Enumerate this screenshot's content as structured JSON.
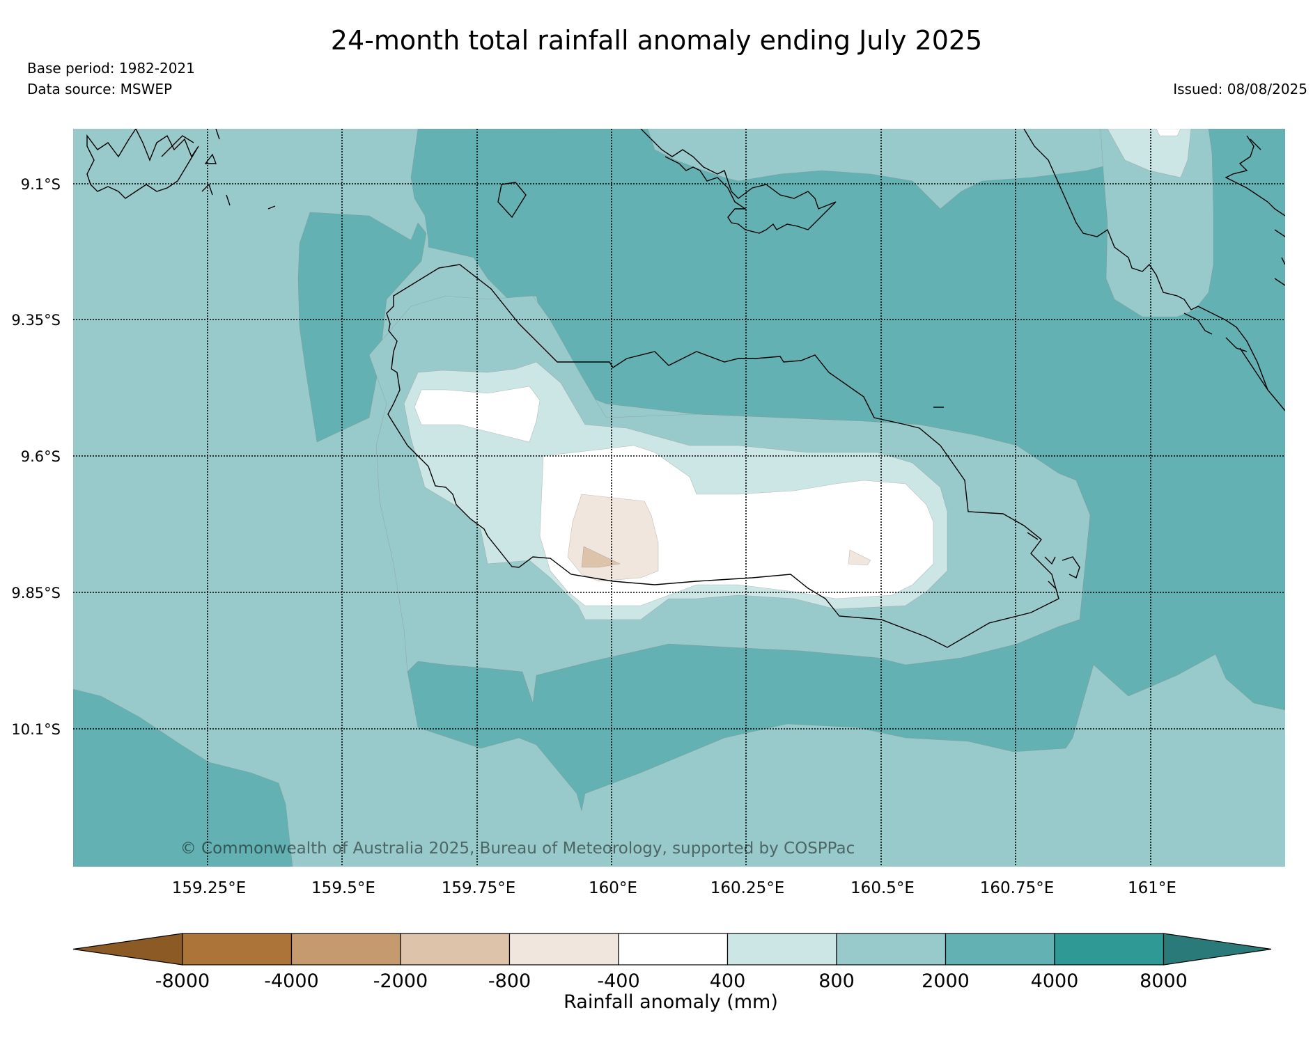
{
  "header": {
    "title": "24-month total rainfall anomaly ending July 2025",
    "base_period": "Base period: 1982-2021",
    "data_source": "Data source: MSWEP",
    "issued": "Issued: 08/08/2025"
  },
  "map": {
    "lat_labels": [
      "9.1°S",
      "9.35°S",
      "9.6°S",
      "9.85°S",
      "10.1°S"
    ],
    "lon_labels": [
      "159.25°E",
      "159.5°E",
      "159.75°E",
      "160°E",
      "160.25°E",
      "160.5°E",
      "160.75°E",
      "161°E"
    ],
    "copyright": "© Commonwealth of Australia 2025, Bureau of Meteorology, supported by COSPPac"
  },
  "colorbar": {
    "title": "Rainfall anomaly (mm)",
    "tick_labels": [
      "-8000",
      "-4000",
      "-2000",
      "-800",
      "-400",
      "400",
      "800",
      "2000",
      "4000",
      "8000"
    ],
    "colors": [
      "#8c5a25",
      "#ad7439",
      "#c49a6e",
      "#dcc3a9",
      "#f0e6dd",
      "#ffffff",
      "#cce5e5",
      "#99cacb",
      "#63b1b2",
      "#2e9995",
      "#2a7a79"
    ]
  }
}
